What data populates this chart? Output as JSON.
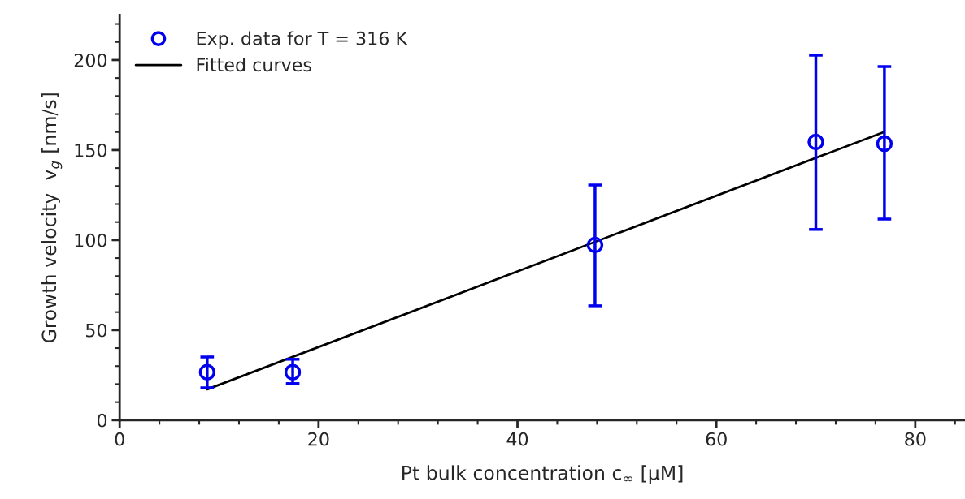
{
  "chart_data": {
    "type": "scatter",
    "xlabel": "Pt bulk concentration c$_{∞}$ [μM]",
    "ylabel": "Growth velocity  v$_{g}$ [nm/s]",
    "xlim": [
      0,
      85
    ],
    "xticks": [
      0,
      20,
      40,
      60,
      80
    ],
    "ylim": [
      0,
      225
    ],
    "yticks": [
      0,
      50,
      100,
      150,
      200
    ],
    "grid": false,
    "legend": "top left",
    "series": [
      {
        "name": "Exp. data for T = 316 K",
        "color": "#0000ee",
        "marker": "circle",
        "x": [
          8.8,
          17.4,
          47.8,
          70.0,
          76.9
        ],
        "values": [
          26.6,
          26.6,
          97.3,
          154.5,
          153.6
        ],
        "errors": [
          [
            18,
            35.1
          ],
          [
            20.3,
            33.8
          ],
          [
            63.5,
            130.6
          ],
          [
            105.9,
            202.7
          ],
          [
            111.7,
            196.4
          ]
        ]
      },
      {
        "name": "Fitted curves",
        "type": "line",
        "color": "#000000",
        "marker": "none",
        "x": [
          8.8,
          76.8
        ],
        "values": [
          17.1,
          159.9
        ]
      }
    ]
  }
}
